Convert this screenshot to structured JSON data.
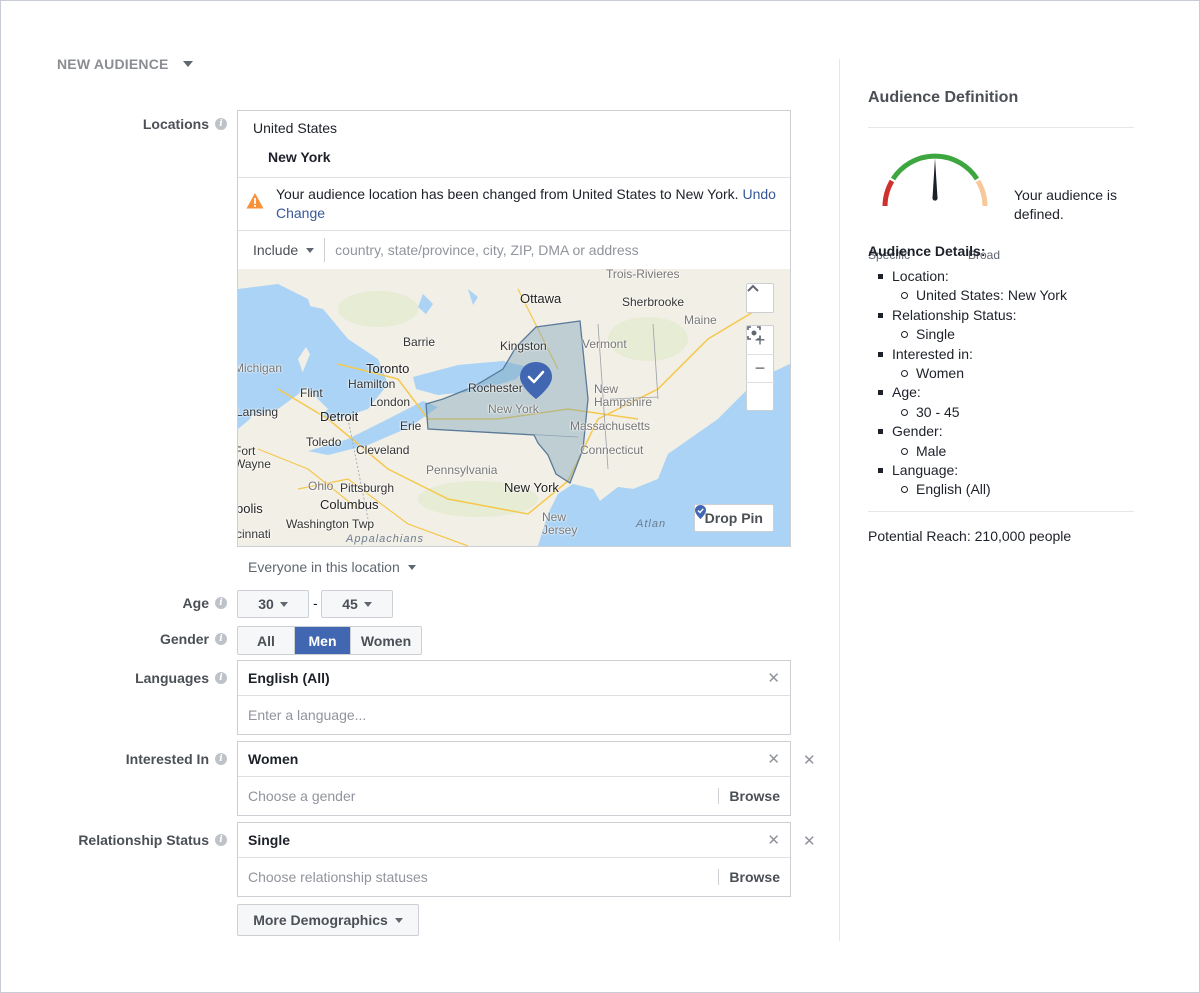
{
  "header": {
    "title": "NEW AUDIENCE"
  },
  "labels": {
    "locations": "Locations",
    "age": "Age",
    "gender": "Gender",
    "languages": "Languages",
    "interested_in": "Interested In",
    "relationship_status": "Relationship Status"
  },
  "location": {
    "country": "United States",
    "region": "New York",
    "warning_text": "Your audience location has been changed from United States to New York.",
    "undo_label": "Undo Change",
    "include_label": "Include",
    "search_placeholder": "country, state/province, city, ZIP, DMA or address",
    "everyone_label": "Everyone in this location"
  },
  "map": {
    "labels": [
      "Trois-Rivieres",
      "Ottawa",
      "Sherbrooke",
      "Maine",
      "Barrie",
      "Kingston",
      "Vermont",
      "Toronto",
      "Hamilton",
      "Rochester",
      "Michigan",
      "Flint",
      "London",
      "New Hampshire",
      "Lansing",
      "Detroit",
      "New York",
      "Erie",
      "Massachusetts",
      "Toledo",
      "Connecticut",
      "Fort Wayne",
      "Cleveland",
      "Pennsylvania",
      "Ohio",
      "Pittsburgh",
      "New York",
      "Columbus",
      "polis",
      "Washington Twp",
      "New Jersey",
      "cinnati",
      "Appalachians",
      "Atlan"
    ],
    "drop_pin_label": "Drop Pin",
    "zoom_in": "+",
    "zoom_out": "−"
  },
  "age": {
    "min": "30",
    "max": "45",
    "dash": "-"
  },
  "gender": {
    "options": [
      "All",
      "Men",
      "Women"
    ],
    "selected": "Men"
  },
  "languages": {
    "selected": "English (All)",
    "placeholder": "Enter a language..."
  },
  "interested_in": {
    "selected": "Women",
    "placeholder": "Choose a gender",
    "browse_label": "Browse"
  },
  "relationship": {
    "selected": "Single",
    "placeholder": "Choose relationship statuses",
    "browse_label": "Browse"
  },
  "more_demographics_label": "More Demographics",
  "definition": {
    "title": "Audience Definition",
    "status_text": "Your audience is defined.",
    "specific_label": "Specific",
    "broad_label": "Broad",
    "details_title": "Audience Details:",
    "details": [
      {
        "label": "Location:",
        "value": "United States: New York"
      },
      {
        "label": "Relationship Status:",
        "value": "Single"
      },
      {
        "label": "Interested in:",
        "value": "Women"
      },
      {
        "label": "Age:",
        "value": "30 - 45"
      },
      {
        "label": "Gender:",
        "value": "Male"
      },
      {
        "label": "Language:",
        "value": "English (All)"
      }
    ],
    "potential_reach": "Potential Reach: 210,000 people"
  },
  "icons": {
    "info": "info-icon",
    "warning": "warning-icon",
    "remove": "close-icon",
    "map_pin": "map-pin-check-icon",
    "gauge": "audience-gauge-icon"
  },
  "colors": {
    "accent": "#4267b2",
    "link": "#365899",
    "warning": "#f7923b",
    "gauge_red": "#d0312d",
    "gauge_green": "#3da63f",
    "gauge_orange": "#f7c99a",
    "water": "#aad3f5",
    "land": "#f2efe6",
    "ny_region": "#9db8c8"
  }
}
